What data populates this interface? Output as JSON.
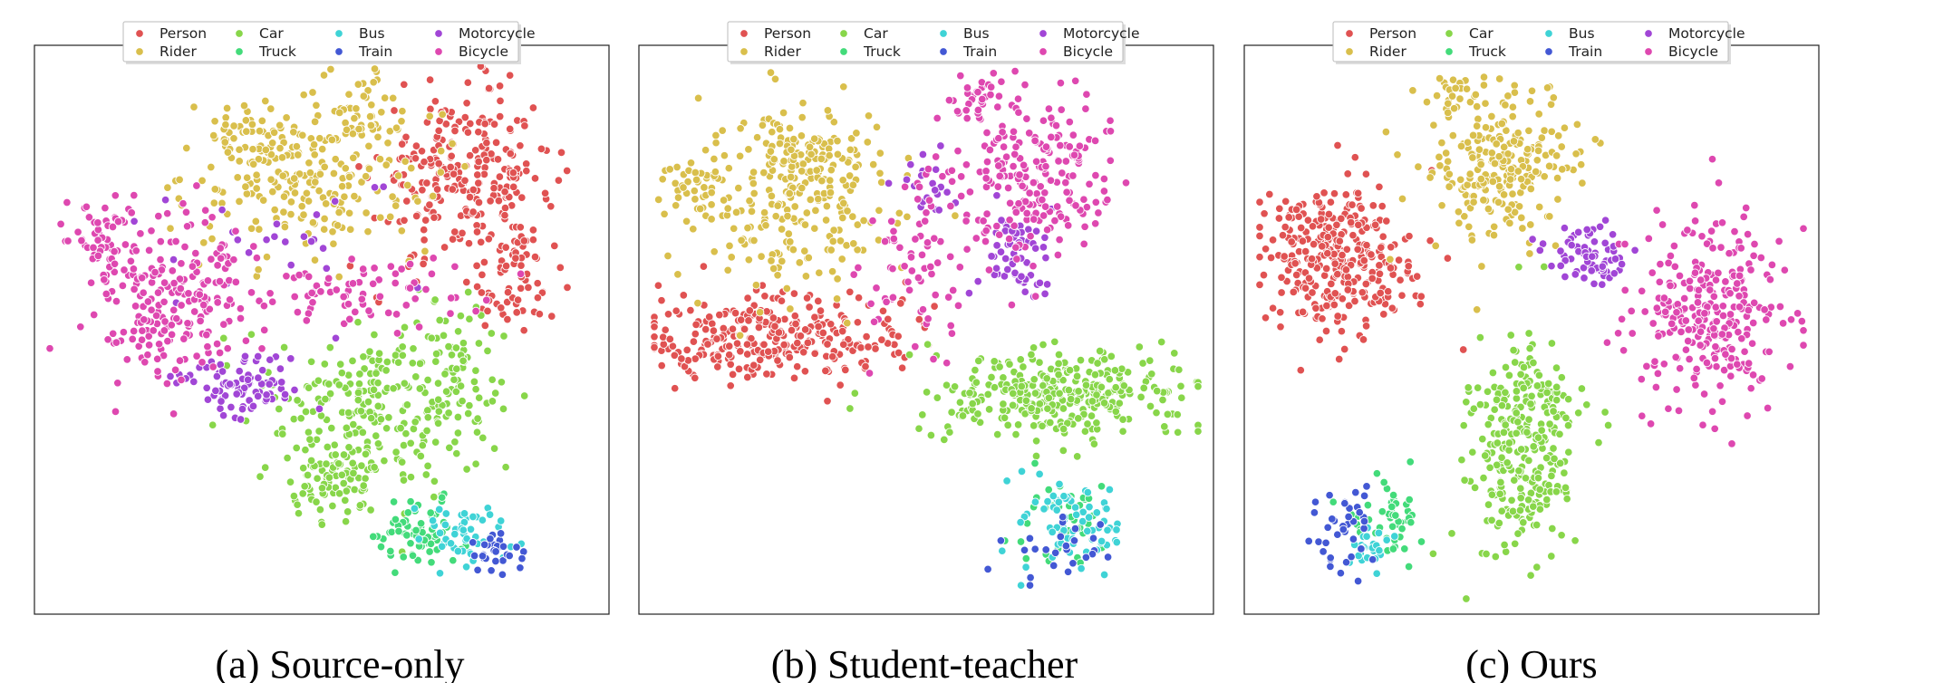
{
  "chart_data": [
    {
      "type": "scatter",
      "caption": "(a) Source-only",
      "legend_placement": "top-center",
      "grid": false,
      "axes_ticks": false,
      "legend": [
        "Person",
        "Rider",
        "Car",
        "Truck",
        "Bus",
        "Train",
        "Motorcycle",
        "Bicycle"
      ],
      "colors": {
        "Person": "#e05252",
        "Rider": "#d9bf4c",
        "Car": "#88d64a",
        "Truck": "#43db7a",
        "Bus": "#3fd3d6",
        "Train": "#4358d4",
        "Motorcycle": "#a146d6",
        "Bicycle": "#de48b0"
      },
      "xlim": [
        0,
        100
      ],
      "ylim": [
        0,
        100
      ],
      "series": [
        {
          "name": "Person",
          "clusters": [
            {
              "x": 76,
              "y": 78,
              "sx": 8,
              "sy": 8,
              "n": 260
            },
            {
              "x": 86,
              "y": 60,
              "sx": 4,
              "sy": 5,
              "n": 60
            }
          ]
        },
        {
          "name": "Rider",
          "clusters": [
            {
              "x": 48,
              "y": 78,
              "sx": 11,
              "sy": 7,
              "n": 210
            },
            {
              "x": 56,
              "y": 90,
              "sx": 4,
              "sy": 4,
              "n": 40
            },
            {
              "x": 38,
              "y": 85,
              "sx": 5,
              "sy": 3,
              "n": 50
            }
          ]
        },
        {
          "name": "Car",
          "clusters": [
            {
              "x": 62,
              "y": 36,
              "sx": 10,
              "sy": 8,
              "n": 260
            },
            {
              "x": 52,
              "y": 22,
              "sx": 4,
              "sy": 4,
              "n": 70
            },
            {
              "x": 76,
              "y": 46,
              "sx": 4,
              "sy": 5,
              "n": 40
            }
          ]
        },
        {
          "name": "Truck",
          "clusters": [
            {
              "x": 68,
              "y": 12,
              "sx": 4,
              "sy": 3,
              "n": 70
            }
          ]
        },
        {
          "name": "Bus",
          "clusters": [
            {
              "x": 76,
              "y": 12,
              "sx": 4,
              "sy": 3,
              "n": 50
            }
          ]
        },
        {
          "name": "Train",
          "clusters": [
            {
              "x": 82,
              "y": 9,
              "sx": 3,
              "sy": 2,
              "n": 30
            }
          ]
        },
        {
          "name": "Motorcycle",
          "clusters": [
            {
              "x": 35,
              "y": 40,
              "sx": 6,
              "sy": 3,
              "n": 80
            },
            {
              "x": 40,
              "y": 67,
              "sx": 12,
              "sy": 9,
              "n": 30
            }
          ]
        },
        {
          "name": "Bicycle",
          "clusters": [
            {
              "x": 24,
              "y": 56,
              "sx": 8,
              "sy": 8,
              "n": 220
            },
            {
              "x": 10,
              "y": 67,
              "sx": 4,
              "sy": 4,
              "n": 50
            },
            {
              "x": 58,
              "y": 56,
              "sx": 9,
              "sy": 3,
              "n": 70
            }
          ]
        }
      ]
    },
    {
      "type": "scatter",
      "caption": "(b) Student-teacher",
      "legend_placement": "top-center",
      "grid": false,
      "axes_ticks": false,
      "legend": [
        "Person",
        "Rider",
        "Car",
        "Truck",
        "Bus",
        "Train",
        "Motorcycle",
        "Bicycle"
      ],
      "colors": {
        "Person": "#e05252",
        "Rider": "#d9bf4c",
        "Car": "#88d64a",
        "Truck": "#43db7a",
        "Bus": "#3fd3d6",
        "Train": "#4358d4",
        "Motorcycle": "#a146d6",
        "Bicycle": "#de48b0"
      },
      "xlim": [
        0,
        100
      ],
      "ylim": [
        0,
        100
      ],
      "series": [
        {
          "name": "Person",
          "clusters": [
            {
              "x": 22,
              "y": 49,
              "sx": 12,
              "sy": 4,
              "n": 300
            }
          ]
        },
        {
          "name": "Rider",
          "clusters": [
            {
              "x": 27,
              "y": 74,
              "sx": 9,
              "sy": 9,
              "n": 230
            },
            {
              "x": 8,
              "y": 76,
              "sx": 3,
              "sy": 3,
              "n": 40
            },
            {
              "x": 28,
              "y": 82,
              "sx": 5,
              "sy": 3,
              "n": 50
            }
          ]
        },
        {
          "name": "Car",
          "clusters": [
            {
              "x": 74,
              "y": 38,
              "sx": 11,
              "sy": 4,
              "n": 320
            }
          ]
        },
        {
          "name": "Truck",
          "clusters": [
            {
              "x": 75,
              "y": 14,
              "sx": 4,
              "sy": 4,
              "n": 40
            }
          ]
        },
        {
          "name": "Bus",
          "clusters": [
            {
              "x": 77,
              "y": 14,
              "sx": 5,
              "sy": 5,
              "n": 70
            }
          ]
        },
        {
          "name": "Train",
          "clusters": [
            {
              "x": 73,
              "y": 9,
              "sx": 5,
              "sy": 3,
              "n": 25
            }
          ]
        },
        {
          "name": "Motorcycle",
          "clusters": [
            {
              "x": 66,
              "y": 64,
              "sx": 3,
              "sy": 5,
              "n": 60
            },
            {
              "x": 50,
              "y": 77,
              "sx": 3,
              "sy": 3,
              "n": 20
            }
          ]
        },
        {
          "name": "Bicycle",
          "clusters": [
            {
              "x": 70,
              "y": 78,
              "sx": 7,
              "sy": 8,
              "n": 220
            },
            {
              "x": 48,
              "y": 62,
              "sx": 6,
              "sy": 8,
              "n": 70
            },
            {
              "x": 58,
              "y": 92,
              "sx": 2,
              "sy": 2,
              "n": 25
            }
          ]
        }
      ]
    },
    {
      "type": "scatter",
      "caption": "(c) Ours",
      "legend_placement": "top-center",
      "grid": false,
      "axes_ticks": false,
      "legend": [
        "Person",
        "Rider",
        "Car",
        "Truck",
        "Bus",
        "Train",
        "Motorcycle",
        "Bicycle"
      ],
      "colors": {
        "Person": "#e05252",
        "Rider": "#d9bf4c",
        "Car": "#88d64a",
        "Truck": "#43db7a",
        "Bus": "#3fd3d6",
        "Train": "#4358d4",
        "Motorcycle": "#a146d6",
        "Bicycle": "#de48b0"
      },
      "xlim": [
        0,
        100
      ],
      "ylim": [
        0,
        100
      ],
      "series": [
        {
          "name": "Person",
          "clusters": [
            {
              "x": 15,
              "y": 63,
              "sx": 7,
              "sy": 7,
              "n": 320
            }
          ]
        },
        {
          "name": "Rider",
          "clusters": [
            {
              "x": 44,
              "y": 80,
              "sx": 7,
              "sy": 8,
              "n": 240
            },
            {
              "x": 35,
              "y": 93,
              "sx": 2,
              "sy": 2,
              "n": 20
            }
          ]
        },
        {
          "name": "Car",
          "clusters": [
            {
              "x": 49,
              "y": 28,
              "sx": 5,
              "sy": 10,
              "n": 300
            }
          ]
        },
        {
          "name": "Truck",
          "clusters": [
            {
              "x": 24,
              "y": 16,
              "sx": 3,
              "sy": 4,
              "n": 50
            }
          ]
        },
        {
          "name": "Bus",
          "clusters": [
            {
              "x": 20,
              "y": 10,
              "sx": 2,
              "sy": 2,
              "n": 25
            }
          ]
        },
        {
          "name": "Train",
          "clusters": [
            {
              "x": 16,
              "y": 13,
              "sx": 3,
              "sy": 4,
              "n": 40
            }
          ]
        },
        {
          "name": "Motorcycle",
          "clusters": [
            {
              "x": 61,
              "y": 64,
              "sx": 4,
              "sy": 3,
              "n": 70
            }
          ]
        },
        {
          "name": "Bicycle",
          "clusters": [
            {
              "x": 82,
              "y": 54,
              "sx": 7,
              "sy": 9,
              "n": 280
            }
          ]
        }
      ]
    }
  ]
}
